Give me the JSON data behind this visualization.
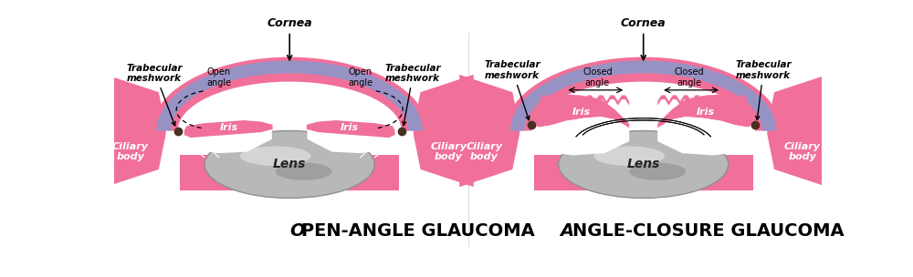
{
  "bg_color": "#ffffff",
  "pink_color": "#F0709A",
  "blue_cornea": "#8899CC",
  "lens_gray": "#B0B0B0",
  "lens_light": "#D8D8D8",
  "white_color": "#FFFFFF",
  "brown_dot": "#4A3020",
  "title1_first": "O",
  "title1_rest": "PEN-ANGLE GLAUCOMA",
  "title2_first": "A",
  "title2_rest": "NGLE-CLOSURE GLAUCOMA",
  "label_cornea": "Cornea",
  "label_trabecular": "Trabecular\nmeshwork",
  "label_iris": "Iris",
  "label_lens": "Lens",
  "label_ciliary": "Ciliary\nbody",
  "label_open_angle": "Open\nangle",
  "label_closed_angle": "Closed\nangle"
}
